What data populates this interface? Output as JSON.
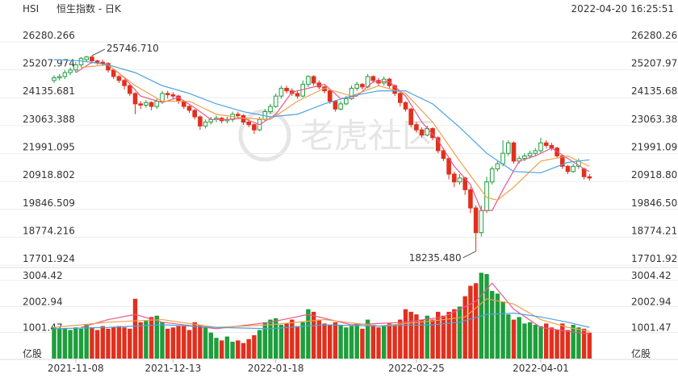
{
  "chart_data": {
    "type": "candlestick",
    "symbol": "HSI",
    "title": "恒生指数 - 日K",
    "timestamp": "2022-04-20 16:25:51",
    "watermark": "老虎社区",
    "categories": [
      null,
      null,
      null,
      null,
      "2021-11-08",
      null,
      null,
      null,
      null,
      null,
      null,
      null,
      null,
      null,
      null,
      null,
      null,
      null,
      null,
      null,
      null,
      null,
      "2021-12-13",
      null,
      null,
      null,
      null,
      null,
      null,
      null,
      null,
      null,
      null,
      null,
      null,
      null,
      null,
      null,
      null,
      null,
      null,
      "2022-01-18",
      null,
      null,
      null,
      null,
      null,
      null,
      null,
      null,
      null,
      null,
      null,
      null,
      null,
      null,
      null,
      null,
      null,
      null,
      null,
      null,
      null,
      null,
      null,
      null,
      null,
      "2022-02-25",
      null,
      null,
      null,
      null,
      null,
      null,
      null,
      null,
      null,
      null,
      null,
      null,
      null,
      null,
      null,
      null,
      null,
      null,
      null,
      null,
      null,
      null,
      "2022-04-01",
      null,
      null,
      null,
      null,
      null,
      null,
      null,
      null,
      null
    ],
    "open": [
      24800,
      24900,
      24950,
      25100,
      25200,
      25400,
      25600,
      25700,
      25550,
      25500,
      25450,
      25200,
      24950,
      24800,
      24600,
      24300,
      23900,
      23850,
      23950,
      23800,
      24000,
      24300,
      24250,
      24200,
      24000,
      23800,
      23650,
      23400,
      23050,
      23200,
      23300,
      23350,
      23250,
      23300,
      23500,
      23450,
      23200,
      23100,
      22900,
      23300,
      23600,
      23800,
      24200,
      24500,
      24400,
      24300,
      24200,
      24650,
      24950,
      24700,
      24550,
      24400,
      24000,
      23700,
      23900,
      24100,
      24500,
      24650,
      24550,
      24950,
      24800,
      24700,
      24850,
      24600,
      24300,
      23950,
      23700,
      23100,
      22900,
      22700,
      22950,
      22600,
      22100,
      21800,
      21200,
      20900,
      21050,
      20600,
      19900,
      18950,
      19800,
      20900,
      21400,
      21600,
      22000,
      22400,
      21700,
      21800,
      21900,
      22000,
      22100,
      22400,
      22300,
      22200,
      21900,
      21500,
      21300,
      21500,
      21400,
      21100
    ],
    "close": [
      24900,
      24950,
      25100,
      25200,
      25400,
      25650,
      25700,
      25550,
      25500,
      25450,
      25200,
      24950,
      24800,
      24600,
      24300,
      23900,
      23850,
      23950,
      23800,
      24000,
      24300,
      24250,
      24200,
      24000,
      23800,
      23650,
      23400,
      23050,
      23200,
      23300,
      23350,
      23250,
      23300,
      23500,
      23450,
      23200,
      23100,
      22900,
      23300,
      23600,
      23800,
      24200,
      24500,
      24400,
      24300,
      24200,
      24650,
      24950,
      24700,
      24550,
      24400,
      24000,
      23700,
      23900,
      24100,
      24500,
      24650,
      24550,
      24950,
      24800,
      24700,
      24850,
      24600,
      24300,
      23950,
      23700,
      23100,
      22900,
      22700,
      22950,
      22600,
      22100,
      21800,
      21200,
      20900,
      21050,
      20600,
      19900,
      18950,
      19800,
      20900,
      21400,
      21600,
      22000,
      22400,
      21700,
      21800,
      21900,
      22000,
      22100,
      22400,
      22300,
      22200,
      21900,
      21500,
      21300,
      21500,
      21700,
      21100,
      21050
    ],
    "high": [
      25000,
      25050,
      25200,
      25300,
      25500,
      25700,
      25746.71,
      25750,
      25600,
      25600,
      25500,
      25250,
      25000,
      24850,
      24650,
      24350,
      24000,
      24050,
      24000,
      24100,
      24400,
      24400,
      24350,
      24250,
      24050,
      23850,
      23700,
      23450,
      23300,
      23400,
      23450,
      23400,
      23400,
      23600,
      23600,
      23500,
      23300,
      23150,
      23400,
      23700,
      23900,
      24300,
      24600,
      24600,
      24500,
      24400,
      24800,
      25000,
      25000,
      24800,
      24600,
      24450,
      24050,
      24000,
      24200,
      24600,
      24750,
      24700,
      25050,
      25000,
      24900,
      24950,
      24900,
      24650,
      24350,
      24000,
      23750,
      23200,
      23000,
      23050,
      23000,
      22650,
      22200,
      21850,
      21300,
      21200,
      21100,
      20700,
      20000,
      20000,
      21100,
      21500,
      21700,
      22500,
      22500,
      22450,
      21900,
      22000,
      22100,
      22200,
      22600,
      22500,
      22400,
      22250,
      21950,
      21550,
      21600,
      21800,
      21450,
      21200
    ],
    "low": [
      24700,
      24800,
      24850,
      25000,
      25100,
      25300,
      25500,
      25450,
      25400,
      25350,
      25100,
      24850,
      24700,
      24450,
      24200,
      23500,
      23700,
      23750,
      23650,
      23700,
      23900,
      24100,
      24100,
      23900,
      23700,
      23550,
      23300,
      22900,
      22950,
      23100,
      23200,
      23150,
      23150,
      23200,
      23350,
      23100,
      23000,
      22750,
      22850,
      23250,
      23500,
      23750,
      24100,
      24300,
      24200,
      24100,
      24150,
      24550,
      24600,
      24450,
      24300,
      23900,
      23600,
      23650,
      23850,
      24050,
      24400,
      24450,
      24500,
      24700,
      24600,
      24600,
      24500,
      24200,
      23800,
      23600,
      23000,
      22800,
      22600,
      22650,
      22500,
      22000,
      21700,
      21000,
      20700,
      20800,
      20400,
      19700,
      18235.48,
      18800,
      19700,
      20800,
      21300,
      21500,
      21900,
      21600,
      21600,
      21700,
      21800,
      21900,
      22000,
      22200,
      22100,
      21800,
      21400,
      21200,
      21250,
      21400,
      21000,
      20950
    ],
    "ylim": [
      17701.924,
      26280.266
    ],
    "yticks": [
      26280.266,
      25207.974,
      24135.681,
      23063.388,
      21991.095,
      20918.802,
      19846.509,
      18774.216,
      17701.924
    ],
    "up_color": "#1e9e3c",
    "down_color": "#e0301e",
    "high_label": "25746.710",
    "low_label": "18235.480",
    "ma": [
      {
        "color": "#e8598a",
        "x": [
          4,
          7,
          10,
          13,
          16,
          20,
          23,
          26,
          29,
          32,
          35,
          38,
          41,
          44,
          47,
          50,
          53,
          56,
          59,
          62,
          65,
          68,
          71,
          74,
          77,
          79,
          81,
          83,
          86,
          89,
          92,
          95,
          98,
          99
        ],
        "values": [
          25100,
          25500,
          25400,
          24900,
          24200,
          23950,
          24150,
          23750,
          23300,
          23300,
          23350,
          23100,
          23500,
          24350,
          24500,
          24650,
          24100,
          24200,
          24750,
          24750,
          24200,
          23200,
          22500,
          21500,
          20800,
          19800,
          19800,
          20600,
          21700,
          21900,
          22200,
          21800,
          21400,
          21300
        ]
      },
      {
        "color": "#f0a04b",
        "x": [
          5,
          10,
          15,
          20,
          25,
          30,
          35,
          40,
          45,
          50,
          55,
          60,
          65,
          70,
          75,
          80,
          82,
          85,
          90,
          95,
          99
        ],
        "values": [
          25300,
          25400,
          24600,
          24000,
          24000,
          23500,
          23350,
          23300,
          24000,
          24500,
          24200,
          24600,
          24300,
          23200,
          21700,
          20300,
          20200,
          20700,
          21700,
          21900,
          21500
        ]
      },
      {
        "color": "#4ba3e0",
        "x": [
          0,
          5,
          10,
          15,
          20,
          25,
          30,
          35,
          40,
          45,
          50,
          55,
          60,
          65,
          70,
          75,
          80,
          85,
          90,
          95,
          99
        ],
        "values": [
          25600,
          25550,
          25400,
          25100,
          24600,
          24300,
          23900,
          23600,
          23400,
          23500,
          23900,
          24200,
          24400,
          24400,
          23900,
          23000,
          22000,
          21300,
          21250,
          21650,
          21750
        ]
      }
    ],
    "volume": {
      "unit": "亿股",
      "values": [
        1200,
        1150,
        1150,
        1100,
        1200,
        1150,
        1300,
        1200,
        1100,
        1250,
        1150,
        1200,
        1250,
        1200,
        1150,
        2300,
        1400,
        1450,
        1600,
        1650,
        1400,
        1150,
        1200,
        1250,
        1250,
        1100,
        1400,
        1300,
        1200,
        1000,
        800,
        700,
        850,
        650,
        700,
        600,
        750,
        900,
        1100,
        1400,
        1500,
        1550,
        1300,
        1350,
        1500,
        1250,
        1400,
        1900,
        1800,
        1500,
        1350,
        1300,
        1400,
        1300,
        1200,
        1250,
        1350,
        1150,
        1500,
        1300,
        1200,
        1250,
        1350,
        1300,
        1500,
        1900,
        1800,
        1700,
        1500,
        1650,
        1500,
        1800,
        1650,
        1800,
        1900,
        2000,
        2400,
        2800,
        2900,
        3300,
        3250,
        2600,
        2500,
        2200,
        1700,
        1500,
        1600,
        1350,
        1400,
        1300,
        1250,
        1350,
        1200,
        1100,
        1350,
        1100,
        1300,
        1200,
        1150,
        1000
      ],
      "ylim": [
        0,
        3350
      ],
      "yticks": [
        3004.42,
        2002.94,
        1001.47
      ],
      "ma": [
        {
          "color": "#e8598a",
          "x": [
            5,
            10,
            15,
            20,
            30,
            40,
            47,
            55,
            65,
            72,
            78,
            81,
            85,
            90,
            95,
            99
          ],
          "values": [
            1200,
            1500,
            1700,
            1400,
            1150,
            1400,
            1700,
            1300,
            1400,
            1600,
            2200,
            2900,
            1900,
            1200,
            1050,
            950
          ]
        },
        {
          "color": "#f0a04b",
          "x": [
            0,
            10,
            20,
            30,
            40,
            50,
            60,
            70,
            76,
            80,
            85,
            90,
            95,
            99
          ],
          "values": [
            1200,
            1400,
            1500,
            1200,
            1300,
            1500,
            1250,
            1450,
            1600,
            2300,
            2100,
            1500,
            1200,
            1050
          ]
        },
        {
          "color": "#4ba3e0",
          "x": [
            0,
            10,
            20,
            30,
            40,
            50,
            60,
            70,
            75,
            80,
            85,
            90,
            95,
            99
          ],
          "values": [
            1150,
            1200,
            1300,
            1200,
            1150,
            1300,
            1250,
            1300,
            1400,
            1700,
            1750,
            1600,
            1400,
            1200
          ]
        }
      ]
    }
  }
}
